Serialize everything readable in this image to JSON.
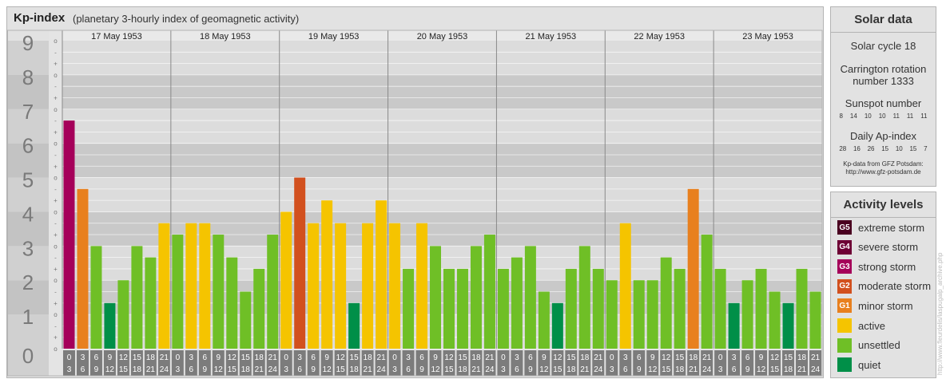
{
  "title": "Kp-index",
  "subtitle": "(planetary 3-hourly index of geomagnetic activity)",
  "chart_data": {
    "type": "bar",
    "days": [
      "17 May 1953",
      "18 May 1953",
      "19 May 1953",
      "20 May 1953",
      "21 May 1953",
      "22 May 1953",
      "23 May 1953"
    ],
    "hour_labels": [
      [
        "0",
        "3"
      ],
      [
        "3",
        "6"
      ],
      [
        "6",
        "9"
      ],
      [
        "9",
        "12"
      ],
      [
        "12",
        "15"
      ],
      [
        "15",
        "18"
      ],
      [
        "18",
        "21"
      ],
      [
        "21",
        "24"
      ]
    ],
    "y_ticks": [
      "0",
      "1",
      "2",
      "3",
      "4",
      "5",
      "6",
      "7",
      "8",
      "9"
    ],
    "minor_ticks": [
      "-",
      "o",
      "+"
    ],
    "ylim": [
      0,
      9
    ],
    "values": [
      6.667,
      4.667,
      3.0,
      1.333,
      2.0,
      3.0,
      2.667,
      3.667,
      3.333,
      3.667,
      3.667,
      3.333,
      2.667,
      1.667,
      2.333,
      3.333,
      4.0,
      5.0,
      3.667,
      4.333,
      3.667,
      1.333,
      3.667,
      4.333,
      3.667,
      2.333,
      3.667,
      3.0,
      2.333,
      2.333,
      3.0,
      3.333,
      2.333,
      2.667,
      3.0,
      1.667,
      1.333,
      2.333,
      3.0,
      2.333,
      2.0,
      3.667,
      2.0,
      2.0,
      2.667,
      2.333,
      4.667,
      3.333,
      2.333,
      1.333,
      2.0,
      2.333,
      1.667,
      1.333,
      2.333,
      1.667
    ]
  },
  "colors": {
    "G5": "#4a0020",
    "G4": "#6e0035",
    "G3": "#a5005a",
    "G2": "#d2501e",
    "G1": "#e8801e",
    "active": "#f5c400",
    "unsettled": "#6fbf26",
    "quiet": "#008f48"
  },
  "solar": {
    "heading": "Solar data",
    "cycle": "Solar cycle 18",
    "carrington_line1": "Carrington rotation",
    "carrington_line2": "number 1333",
    "sunspot_label": "Sunspot number",
    "sunspot_values": [
      "8",
      "14",
      "10",
      "10",
      "11",
      "11",
      "11"
    ],
    "ap_label": "Daily Ap-index",
    "ap_values": [
      "28",
      "16",
      "26",
      "15",
      "10",
      "15",
      "7"
    ],
    "source_line1": "Kp-data from GFZ Potsdam:",
    "source_line2": "http://www.gfz-potsdam.de"
  },
  "activity": {
    "heading": "Activity levels",
    "items": [
      {
        "code": "G5",
        "label": "extreme storm",
        "color": "#4a0020"
      },
      {
        "code": "G4",
        "label": "severe storm",
        "color": "#6e0035"
      },
      {
        "code": "G3",
        "label": "strong storm",
        "color": "#a5005a"
      },
      {
        "code": "G2",
        "label": "moderate storm",
        "color": "#d2501e"
      },
      {
        "code": "G1",
        "label": "minor storm",
        "color": "#e8801e"
      },
      {
        "code": "",
        "label": "active",
        "color": "#f5c400"
      },
      {
        "code": "",
        "label": "unsettled",
        "color": "#6fbf26"
      },
      {
        "code": "",
        "label": "quiet",
        "color": "#008f48"
      }
    ]
  },
  "watermark": "http://www.fleurdelis/laspugalp_archive.php"
}
